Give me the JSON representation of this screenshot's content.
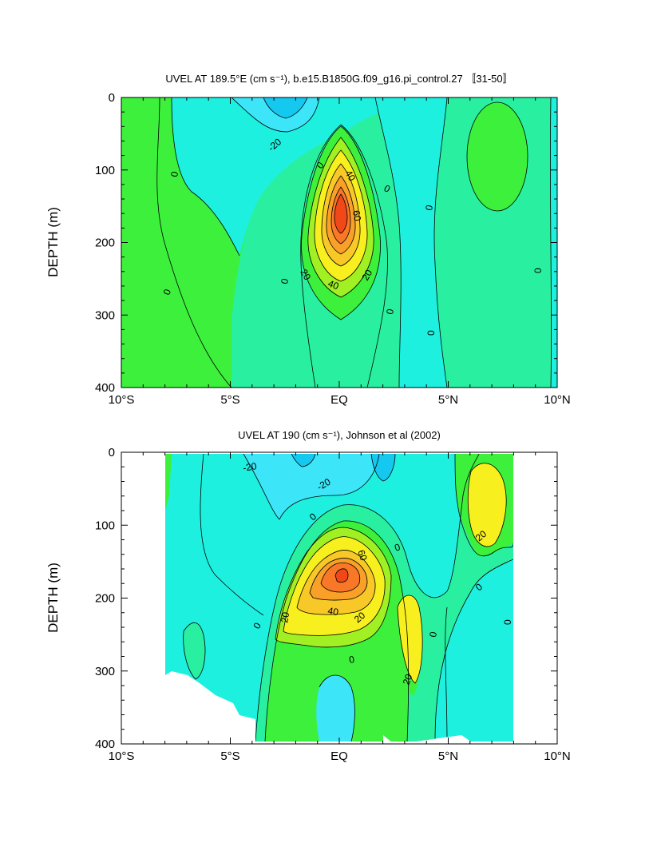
{
  "chart_data": [
    {
      "type": "contour",
      "title": "UVEL AT 189.5°E (cm s⁻¹), b.e15.B1850G.f09_g16.pi_control.27 〚31-50〛",
      "xlabel": "",
      "ylabel": "DEPTH (m)",
      "xlim": [
        -10,
        10
      ],
      "ylim": [
        400,
        0
      ],
      "x_ticks": [
        "10°S",
        "5°S",
        "EQ",
        "5°N",
        "10°N"
      ],
      "y_ticks": [
        "0",
        "100",
        "200",
        "300",
        "400"
      ],
      "contour_interval": 10,
      "contour_labels": [
        "-20",
        "0",
        "0",
        "0",
        "0",
        "0",
        "0",
        "0",
        "0",
        "20",
        "20",
        "40",
        "40",
        "60",
        "0"
      ],
      "core_max_approx": 70,
      "core_location": {
        "lat": 0,
        "depth": 165
      }
    },
    {
      "type": "contour",
      "title": "UVEL AT 190 (cm s⁻¹), Johnson et al (2002)",
      "xlabel": "",
      "ylabel": "DEPTH (m)",
      "xlim": [
        -10,
        10
      ],
      "ylim": [
        400,
        0
      ],
      "x_ticks": [
        "10°S",
        "5°S",
        "EQ",
        "5°N",
        "10°N"
      ],
      "y_ticks": [
        "0",
        "100",
        "200",
        "300",
        "400"
      ],
      "contour_interval": 10,
      "contour_labels": [
        "-20",
        "-20",
        "0",
        "0",
        "0",
        "0",
        "0",
        "20",
        "20",
        "20",
        "20",
        "40",
        "60",
        "0",
        "0"
      ],
      "core_max_approx": 80,
      "core_location": {
        "lat": 0,
        "depth": 150
      }
    }
  ],
  "palette": {
    "lt_m30": "#14c8f0",
    "lt_m20": "#3ce6f8",
    "lt_m10": "#1ef0e0",
    "0_10": "#28f0a0",
    "10_20": "#3cf03c",
    "20_30": "#a0f024",
    "30_40": "#f8f01e",
    "40_50": "#f8c828",
    "50_60": "#f8a028",
    "60_70": "#f87828",
    "gt_70": "#f04818"
  }
}
